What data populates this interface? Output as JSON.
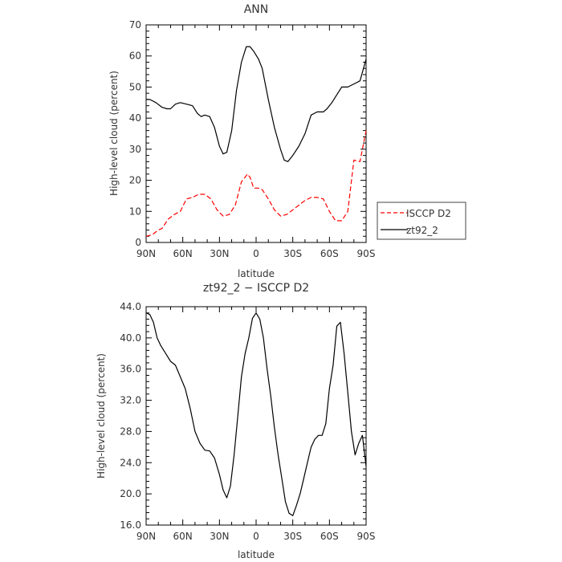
{
  "chart_data": [
    {
      "type": "line",
      "title": "ANN",
      "xlabel": "latitude",
      "ylabel": "High-level cloud (percent)",
      "x_ticks": [
        -90,
        -60,
        -30,
        0,
        30,
        60,
        90
      ],
      "x_tick_labels": [
        "90N",
        "60N",
        "30N",
        "0",
        "30S",
        "60S",
        "90S"
      ],
      "xlim": [
        -90,
        90
      ],
      "ylim": [
        0,
        70
      ],
      "y_ticks": [
        0,
        10,
        20,
        30,
        40,
        50,
        60,
        70
      ],
      "y_tick_labels": [
        "0",
        "10",
        "20",
        "30",
        "40",
        "50",
        "60",
        "70"
      ],
      "legend_position": "right",
      "series": [
        {
          "name": "ISCCP D2",
          "color": "#ff0000",
          "dash": "dashed",
          "x": [
            -90,
            -85,
            -80,
            -77,
            -72,
            -67,
            -62,
            -57,
            -52,
            -47,
            -42,
            -37,
            -32,
            -27,
            -22,
            -17,
            -12,
            -7,
            -5,
            -2,
            2,
            5,
            10,
            15,
            20,
            25,
            30,
            35,
            40,
            45,
            50,
            55,
            60,
            65,
            70,
            75,
            80,
            85,
            90
          ],
          "y": [
            2,
            2.5,
            4,
            4.5,
            7.5,
            9,
            10,
            14,
            14.5,
            15.5,
            15.5,
            14,
            10.5,
            8.5,
            9,
            12,
            19.5,
            22,
            21,
            17.5,
            17.5,
            17,
            14,
            10.5,
            8.5,
            9,
            10.5,
            12,
            13.5,
            14.5,
            14.5,
            14,
            10,
            7,
            7,
            10,
            26.5,
            26,
            36
          ]
        },
        {
          "name": "zt92_2",
          "color": "#000000",
          "dash": "solid",
          "x": [
            -90,
            -87,
            -82,
            -77,
            -73,
            -70,
            -66,
            -62,
            -57,
            -52,
            -48,
            -45,
            -42,
            -38,
            -34,
            -30,
            -27,
            -24,
            -20,
            -16,
            -12,
            -8,
            -5,
            -2,
            2,
            5,
            10,
            15,
            20,
            23,
            26,
            30,
            35,
            40,
            45,
            50,
            55,
            58,
            62,
            66,
            70,
            75,
            80,
            85,
            90
          ],
          "y": [
            46,
            46,
            45,
            43.5,
            43,
            43,
            44.5,
            45,
            44.5,
            44,
            41.5,
            40.5,
            41,
            40.5,
            37,
            31,
            28.5,
            29,
            36,
            49,
            58,
            63,
            63,
            61.5,
            59,
            56,
            46,
            37,
            30,
            26.5,
            26,
            28,
            31,
            35,
            41,
            42,
            42,
            43,
            45,
            47.5,
            50,
            50,
            51,
            52,
            59
          ]
        }
      ]
    },
    {
      "type": "line",
      "title": "zt92_2 − ISCCP D2",
      "xlabel": "latitude",
      "ylabel": "High-level cloud (percent)",
      "x_ticks": [
        -90,
        -60,
        -30,
        0,
        30,
        60,
        90
      ],
      "x_tick_labels": [
        "90N",
        "60N",
        "30N",
        "0",
        "30S",
        "60S",
        "90S"
      ],
      "xlim": [
        -90,
        90
      ],
      "ylim": [
        16,
        44
      ],
      "y_ticks": [
        16,
        20,
        24,
        28,
        32,
        36,
        40,
        44
      ],
      "y_tick_labels": [
        "16.0",
        "20.0",
        "24.0",
        "28.0",
        "32.0",
        "36.0",
        "40.0",
        "44.0"
      ],
      "series": [
        {
          "color": "#000000",
          "dash": "solid",
          "x": [
            -90,
            -87,
            -84,
            -81,
            -78,
            -74,
            -70,
            -66,
            -62,
            -58,
            -54,
            -50,
            -46,
            -42,
            -38,
            -34,
            -30,
            -27,
            -24,
            -21,
            -18,
            -15,
            -12,
            -9,
            -6,
            -3,
            0,
            3,
            6,
            9,
            12,
            15,
            18,
            21,
            24,
            27,
            30,
            33,
            36,
            39,
            42,
            45,
            48,
            51,
            54,
            57,
            60,
            63,
            66,
            69,
            72,
            75,
            78,
            81,
            84,
            87,
            90
          ],
          "y": [
            43.2,
            43,
            42,
            40,
            39,
            38,
            37,
            36.5,
            35,
            33.5,
            31,
            28,
            26.5,
            25.6,
            25.5,
            24.6,
            22.5,
            20.5,
            19.5,
            21,
            25,
            30,
            35,
            38,
            40,
            42.5,
            43.2,
            42.4,
            40,
            36,
            32.5,
            28.5,
            25,
            22,
            19,
            17.5,
            17.2,
            18.5,
            20,
            22,
            24,
            26,
            27,
            27.5,
            27.5,
            29,
            33.5,
            36.5,
            41.5,
            42,
            38,
            33,
            28,
            25,
            26.5,
            27.5,
            23.5
          ]
        }
      ]
    }
  ]
}
